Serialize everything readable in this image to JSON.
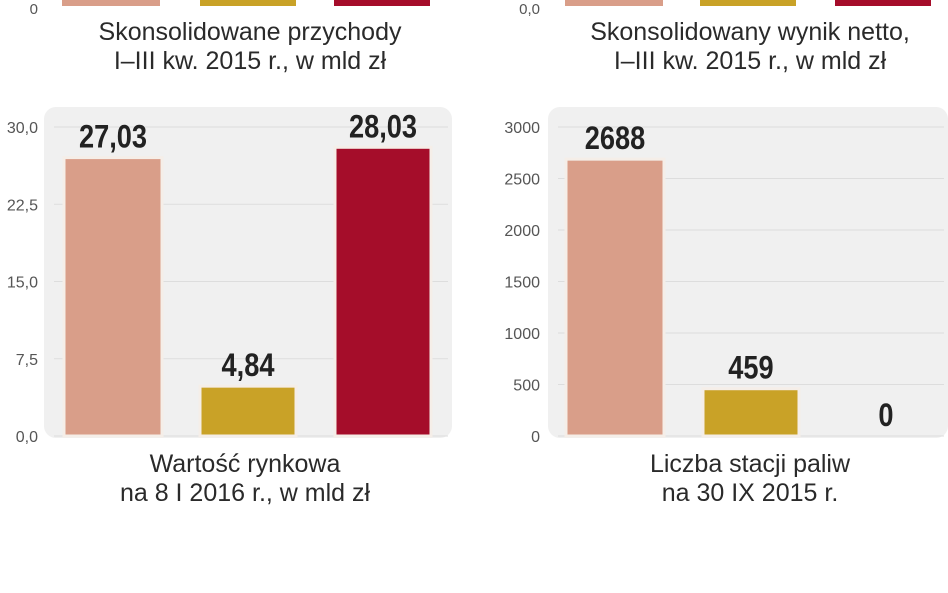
{
  "top_captions": {
    "left": {
      "line1": "Skonsolidowane przychody",
      "line2": "I–III kw. 2015 r., w mld zł",
      "axis_zero": "0"
    },
    "right": {
      "line1": "Skonsolidowany wynik netto,",
      "line2": "I–III kw. 2015 r., w mld zł",
      "axis_zero": "0,0"
    }
  },
  "colors": {
    "salmon": "#d99e89",
    "gold": "#c9a227",
    "crimson": "#a50d2a",
    "panel": "#f0f0f0",
    "grid": "#dddddd",
    "bar_border": "#f5eee8"
  },
  "chart_data": [
    {
      "type": "bar",
      "title": "Wartość rynkowa",
      "subtitle": "na 8 I 2016 r., w mld zł",
      "yticks": [
        "0,0",
        "7,5",
        "15,0",
        "22,5",
        "30,0"
      ],
      "ytick_values": [
        0,
        7.5,
        15,
        22.5,
        30
      ],
      "ylim": [
        0,
        30
      ],
      "values": [
        27.03,
        4.84,
        28.03
      ],
      "value_labels": [
        "27,03",
        "4,84",
        "28,03"
      ],
      "bar_colors": [
        "#d99e89",
        "#c9a227",
        "#a50d2a"
      ]
    },
    {
      "type": "bar",
      "title": "Liczba stacji paliw",
      "subtitle": "na 30 IX 2015 r.",
      "yticks": [
        "0",
        "500",
        "1000",
        "1500",
        "2000",
        "2500",
        "3000"
      ],
      "ytick_values": [
        0,
        500,
        1000,
        1500,
        2000,
        2500,
        3000
      ],
      "ylim": [
        0,
        3000
      ],
      "values": [
        2688,
        459,
        0
      ],
      "value_labels": [
        "2688",
        "459",
        "0"
      ],
      "bar_colors": [
        "#d99e89",
        "#c9a227",
        "#a50d2a"
      ]
    }
  ]
}
